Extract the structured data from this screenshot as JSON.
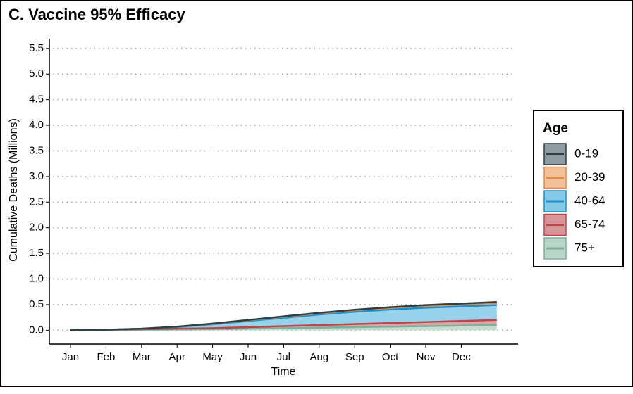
{
  "chart_data": {
    "type": "stacked_area",
    "title": "C. Vaccine 95% Efficacy",
    "x_label": "Time",
    "y_label": "Cumulative Deaths (Millions)",
    "legend_title": "Age",
    "legend_position": "right",
    "grid": true,
    "categories": [
      "Jan",
      "Feb",
      "Mar",
      "Apr",
      "May",
      "Jun",
      "Jul",
      "Aug",
      "Sep",
      "Oct",
      "Nov",
      "Dec",
      null
    ],
    "ylim": [
      -0.27,
      5.69
    ],
    "yticks": [
      {
        "value": 0,
        "label": "0.0"
      },
      0.5,
      {
        "value": 1,
        "label": "1.0"
      },
      1.5,
      {
        "value": 2,
        "label": "2.0"
      },
      2.5,
      {
        "value": 3,
        "label": "3.0"
      },
      3.5,
      {
        "value": 4,
        "label": "4.0"
      },
      4.5,
      {
        "value": 5,
        "label": "5.0"
      },
      5.5
    ],
    "series": [
      {
        "name": "0-19",
        "color": "#2f3f46",
        "fill": "#8f9da2",
        "values": [
          0,
          0,
          0,
          0.002,
          0.004,
          0.006,
          0.008,
          0.01,
          0.012,
          0.014,
          0.016,
          0.018,
          0.02
        ]
      },
      {
        "name": "20-39",
        "color": "#e08a4a",
        "fill": "#f3c09a",
        "values": [
          0,
          0,
          0.003,
          0.005,
          0.01,
          0.014,
          0.02,
          0.024,
          0.028,
          0.032,
          0.035,
          0.038,
          0.04
        ]
      },
      {
        "name": "40-64",
        "color": "#1a8fca",
        "fill": "#86c9e6",
        "values": [
          0,
          0,
          0.007,
          0.033,
          0.076,
          0.12,
          0.162,
          0.206,
          0.24,
          0.264,
          0.279,
          0.284,
          0.29
        ]
      },
      {
        "name": "65-74",
        "color": "#b5484d",
        "fill": "#d99497",
        "values": [
          0,
          0.005,
          0.01,
          0.015,
          0.02,
          0.03,
          0.04,
          0.05,
          0.06,
          0.07,
          0.08,
          0.09,
          0.1
        ]
      },
      {
        "name": "75+",
        "color": "#7fae9a",
        "fill": "#b9d7c8",
        "values": [
          0,
          0.005,
          0.01,
          0.015,
          0.02,
          0.03,
          0.04,
          0.05,
          0.06,
          0.07,
          0.08,
          0.09,
          0.1
        ]
      }
    ]
  }
}
